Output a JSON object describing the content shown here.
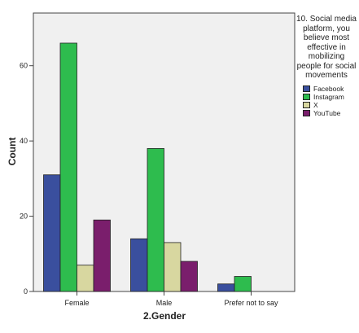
{
  "chart_data": {
    "type": "bar",
    "categories": [
      "Female",
      "Male",
      "Prefer not to say"
    ],
    "series": [
      {
        "name": "Facebook",
        "values": [
          31,
          14,
          2
        ],
        "color": "#3a4f9e"
      },
      {
        "name": "Instagram",
        "values": [
          66,
          38,
          4
        ],
        "color": "#2ebc4e"
      },
      {
        "name": "X",
        "values": [
          7,
          13,
          0
        ],
        "color": "#d8d7a0"
      },
      {
        "name": "YouTube",
        "values": [
          19,
          8,
          0
        ],
        "color": "#7a1e6c"
      }
    ],
    "xlabel": "2.Gender",
    "ylabel": "Count",
    "ylim": [
      0,
      74
    ],
    "yticks": [
      0,
      20,
      40,
      60
    ],
    "legend_title": "10. Social media platform, you believe most effective in mobilizing people for social movements",
    "legend_placement": "right",
    "plot_background": "#f0f0f0",
    "grid": false
  }
}
